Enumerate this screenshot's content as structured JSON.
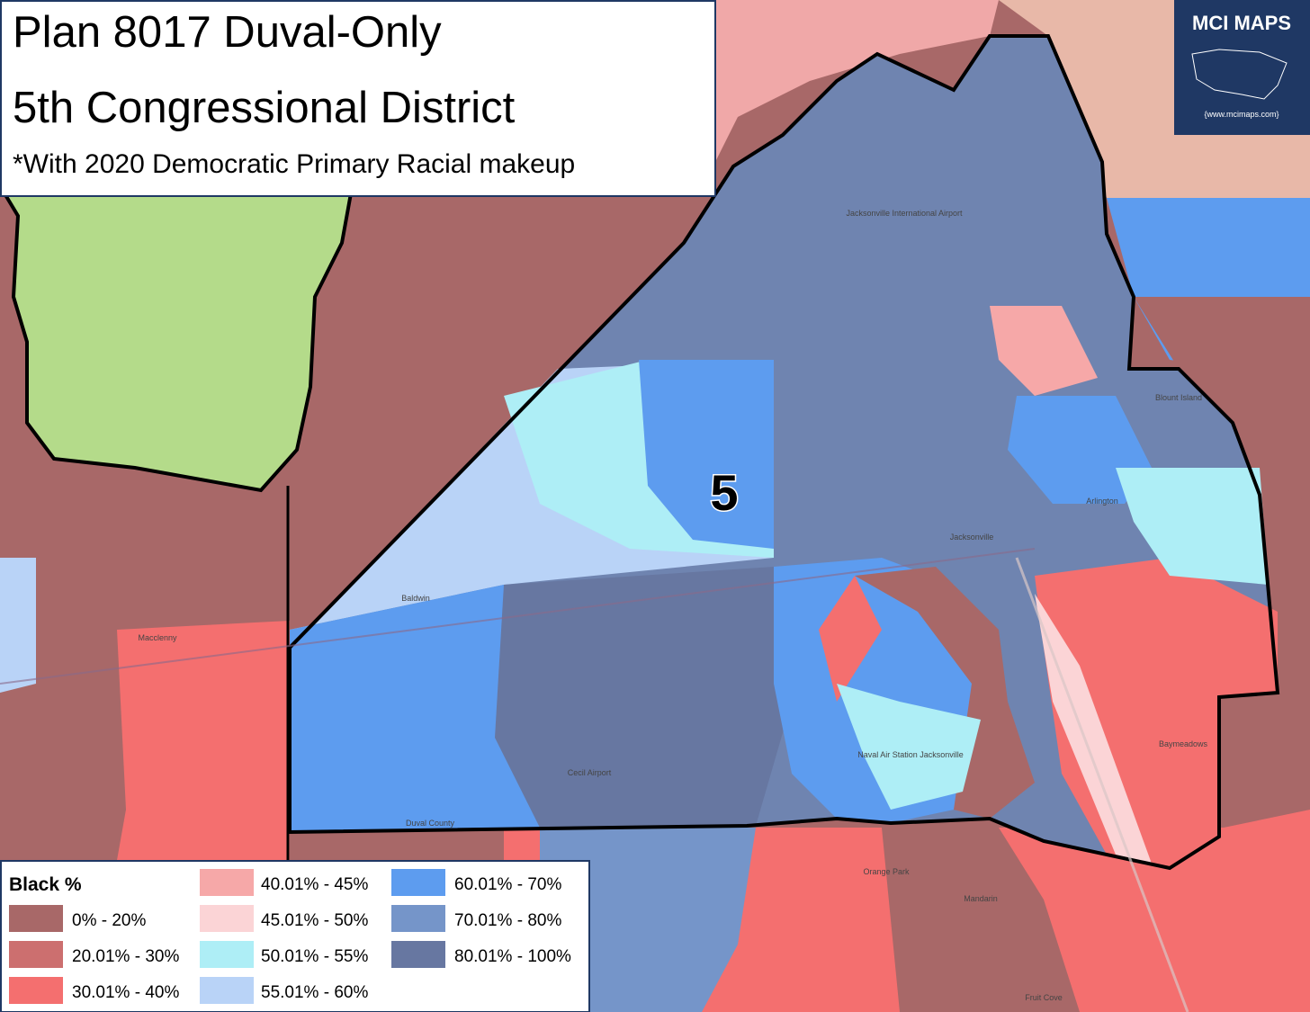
{
  "header": {
    "title_line1": "Plan 8017 Duval-Only",
    "title_line2": "5th Congressional District",
    "subtitle": "*With 2020 Democratic Primary Racial makeup"
  },
  "logo": {
    "name": "MCI MAPS",
    "url": "{www.mcimaps.com}"
  },
  "district_label": "5",
  "legend": {
    "title": "Black %",
    "items": [
      {
        "label": "0% - 20%",
        "color": "#a86868"
      },
      {
        "label": "20.01% - 30%",
        "color": "#cc6f6f"
      },
      {
        "label": "30.01% - 40%",
        "color": "#f46f6f"
      },
      {
        "label": "40.01% - 45%",
        "color": "#f6a8a8"
      },
      {
        "label": "45.01% - 50%",
        "color": "#fbd4d6"
      },
      {
        "label": "50.01% - 55%",
        "color": "#aeeef6"
      },
      {
        "label": "55.01% - 60%",
        "color": "#b9d3f7"
      },
      {
        "label": "60.01% - 70%",
        "color": "#5d9cef"
      },
      {
        "label": "70.01% - 80%",
        "color": "#7595c9"
      },
      {
        "label": "80.01% - 100%",
        "color": "#6777a1"
      }
    ]
  },
  "places": [
    "Jacksonville",
    "Baldwin",
    "Macclenny",
    "Naval Air Station Jacksonville",
    "Orange Park",
    "Mandarin",
    "Fruit Cove",
    "Baymeadows",
    "Arlington",
    "Blount Island",
    "Jacksonville International Airport",
    "Cecil Airport",
    "Duval County"
  ]
}
